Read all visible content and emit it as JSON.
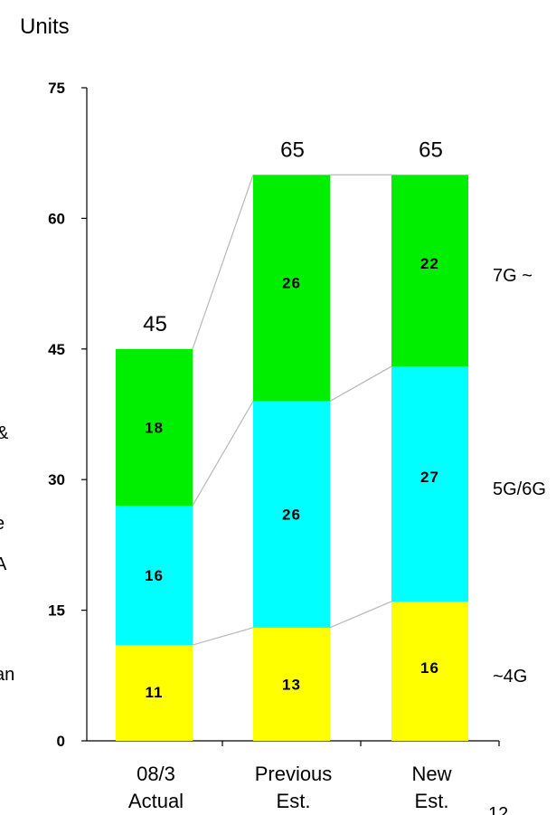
{
  "chart_data": {
    "type": "bar",
    "stacked": true,
    "unit_label": "Units",
    "categories": [
      [
        "08/3",
        "Actual"
      ],
      [
        "Previous",
        "Est."
      ],
      [
        "New",
        "Est."
      ]
    ],
    "series": [
      {
        "name": "~4G",
        "values": [
          11,
          13,
          16
        ],
        "color": "#ffff00"
      },
      {
        "name": "5G/6G",
        "values": [
          16,
          26,
          27
        ],
        "color": "#00ffff"
      },
      {
        "name": "7G ~",
        "values": [
          18,
          26,
          22
        ],
        "color": "#00ee00"
      }
    ],
    "totals": [
      45,
      65,
      65
    ],
    "yticks": [
      0,
      15,
      30,
      45,
      60,
      75
    ],
    "ylim": [
      0,
      75
    ],
    "connector_lines": true
  },
  "page_number_partial": "12",
  "cropped_left_text": [
    "&",
    "ı",
    "e",
    "A",
    "an"
  ]
}
